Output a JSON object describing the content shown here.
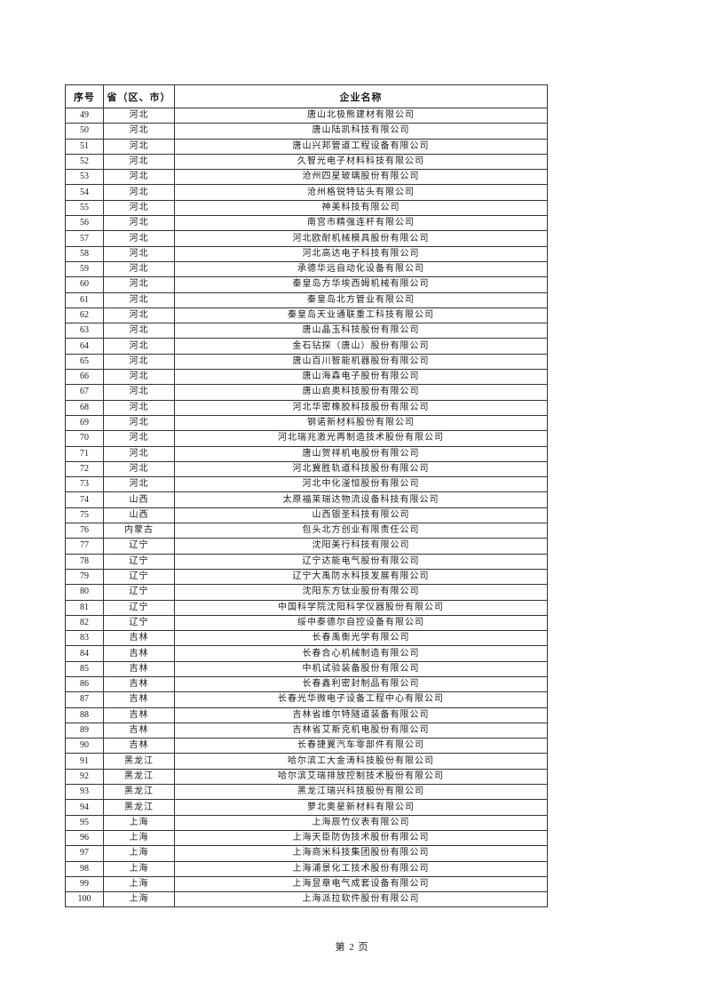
{
  "colors": {
    "border-color": "#333333",
    "text-color": "#1a1a1a",
    "page-bg": "#ffffff"
  },
  "footer": {
    "page_label": "第 2 页"
  },
  "table": {
    "headers": {
      "no": "序号",
      "province": "省（区、市）",
      "company": "企业名称"
    },
    "rows": [
      {
        "no": "49",
        "province": "河北",
        "company": "唐山北极熊建材有限公司"
      },
      {
        "no": "50",
        "province": "河北",
        "company": "唐山陆凯科技有限公司"
      },
      {
        "no": "51",
        "province": "河北",
        "company": "唐山兴邦管道工程设备有限公司"
      },
      {
        "no": "52",
        "province": "河北",
        "company": "久智光电子材料科技有限公司"
      },
      {
        "no": "53",
        "province": "河北",
        "company": "沧州四星玻璃股份有限公司"
      },
      {
        "no": "54",
        "province": "河北",
        "company": "沧州格锐特钻头有限公司"
      },
      {
        "no": "55",
        "province": "河北",
        "company": "神美科技有限公司"
      },
      {
        "no": "56",
        "province": "河北",
        "company": "南宫市精强连杆有限公司"
      },
      {
        "no": "57",
        "province": "河北",
        "company": "河北欧耐机械模具股份有限公司"
      },
      {
        "no": "58",
        "province": "河北",
        "company": "河北高达电子科技有限公司"
      },
      {
        "no": "59",
        "province": "河北",
        "company": "承德华远自动化设备有限公司"
      },
      {
        "no": "60",
        "province": "河北",
        "company": "秦皇岛方华埃西姆机械有限公司"
      },
      {
        "no": "61",
        "province": "河北",
        "company": "秦皇岛北方管业有限公司"
      },
      {
        "no": "62",
        "province": "河北",
        "company": "秦皇岛天业通联重工科技有限公司"
      },
      {
        "no": "63",
        "province": "河北",
        "company": "唐山晶玉科技股份有限公司"
      },
      {
        "no": "64",
        "province": "河北",
        "company": "金石钻探（唐山）股份有限公司"
      },
      {
        "no": "65",
        "province": "河北",
        "company": "唐山百川智能机器股份有限公司"
      },
      {
        "no": "66",
        "province": "河北",
        "company": "唐山海森电子股份有限公司"
      },
      {
        "no": "67",
        "province": "河北",
        "company": "唐山启奥科技股份有限公司"
      },
      {
        "no": "68",
        "province": "河北",
        "company": "河北华密橡胶科技股份有限公司"
      },
      {
        "no": "69",
        "province": "河北",
        "company": "钢诺新材料股份有限公司"
      },
      {
        "no": "70",
        "province": "河北",
        "company": "河北瑞兆激光再制造技术股份有限公司"
      },
      {
        "no": "71",
        "province": "河北",
        "company": "唐山贺祥机电股份有限公司"
      },
      {
        "no": "72",
        "province": "河北",
        "company": "河北冀胜轨道科技股份有限公司"
      },
      {
        "no": "73",
        "province": "河北",
        "company": "河北中化滏恒股份有限公司"
      },
      {
        "no": "74",
        "province": "山西",
        "company": "太原福莱瑞达物流设备科技有限公司"
      },
      {
        "no": "75",
        "province": "山西",
        "company": "山西银圣科技有限公司"
      },
      {
        "no": "76",
        "province": "内蒙古",
        "company": "包头北方创业有限责任公司"
      },
      {
        "no": "77",
        "province": "辽宁",
        "company": "沈阳美行科技有限公司"
      },
      {
        "no": "78",
        "province": "辽宁",
        "company": "辽宁达能电气股份有限公司"
      },
      {
        "no": "79",
        "province": "辽宁",
        "company": "辽宁大禹防水科技发展有限公司"
      },
      {
        "no": "80",
        "province": "辽宁",
        "company": "沈阳东方钛业股份有限公司"
      },
      {
        "no": "81",
        "province": "辽宁",
        "company": "中国科学院沈阳科学仪器股份有限公司"
      },
      {
        "no": "82",
        "province": "辽宁",
        "company": "绥中泰德尔自控设备有限公司"
      },
      {
        "no": "83",
        "province": "吉林",
        "company": "长春禹衡光学有限公司"
      },
      {
        "no": "84",
        "province": "吉林",
        "company": "长春合心机械制造有限公司"
      },
      {
        "no": "85",
        "province": "吉林",
        "company": "中机试验装备股份有限公司"
      },
      {
        "no": "86",
        "province": "吉林",
        "company": "长春鑫利密封制品有限公司"
      },
      {
        "no": "87",
        "province": "吉林",
        "company": "长春光华微电子设备工程中心有限公司"
      },
      {
        "no": "88",
        "province": "吉林",
        "company": "吉林省维尔特隧道装备有限公司"
      },
      {
        "no": "89",
        "province": "吉林",
        "company": "吉林省艾斯克机电股份有限公司"
      },
      {
        "no": "90",
        "province": "吉林",
        "company": "长春捷翼汽车零部件有限公司"
      },
      {
        "no": "91",
        "province": "黑龙江",
        "company": "哈尔滨工大金涛科技股份有限公司"
      },
      {
        "no": "92",
        "province": "黑龙江",
        "company": "哈尔滨艾瑞排放控制技术股份有限公司"
      },
      {
        "no": "93",
        "province": "黑龙江",
        "company": "黑龙江瑞兴科技股份有限公司"
      },
      {
        "no": "94",
        "province": "黑龙江",
        "company": "萝北奥星新材料有限公司"
      },
      {
        "no": "95",
        "province": "上海",
        "company": "上海辰竹仪表有限公司"
      },
      {
        "no": "96",
        "province": "上海",
        "company": "上海天臣防伪技术股份有限公司"
      },
      {
        "no": "97",
        "province": "上海",
        "company": "上海商米科技集团股份有限公司"
      },
      {
        "no": "98",
        "province": "上海",
        "company": "上海浦景化工技术股份有限公司"
      },
      {
        "no": "99",
        "province": "上海",
        "company": "上海昱章电气成套设备有限公司"
      },
      {
        "no": "100",
        "province": "上海",
        "company": "上海派拉软件股份有限公司"
      }
    ]
  }
}
